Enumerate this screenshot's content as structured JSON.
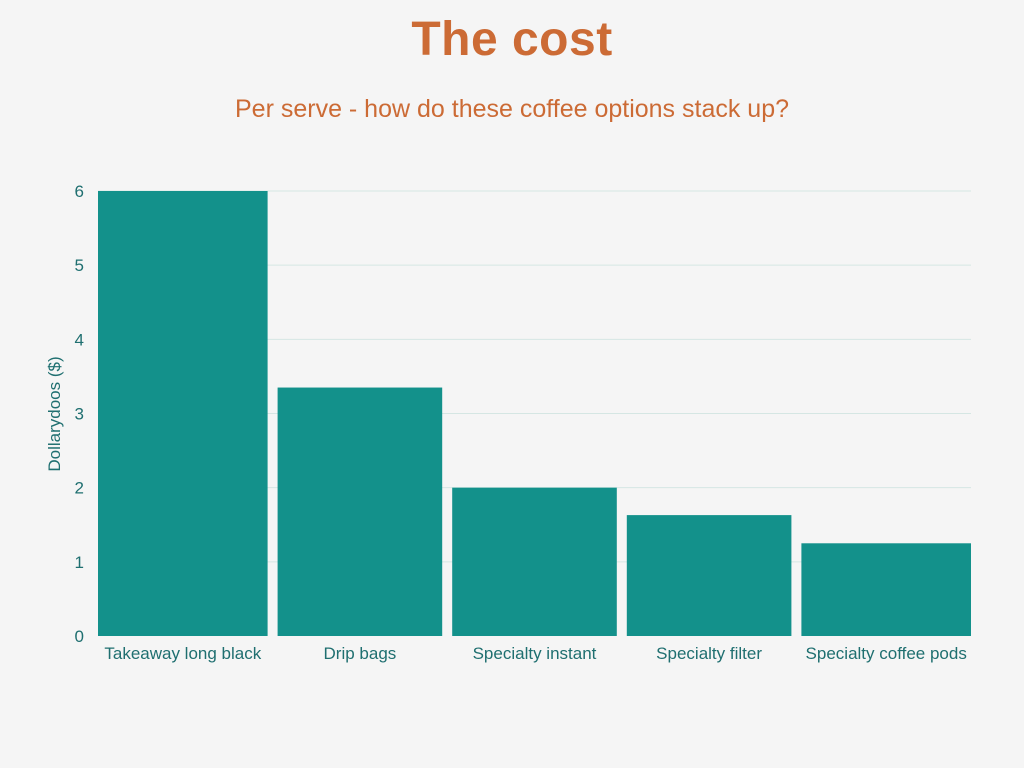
{
  "chart_data": {
    "type": "bar",
    "title": "The cost",
    "subtitle": "Per serve - how do these coffee options stack up?",
    "xlabel": "",
    "ylabel": "Dollarydoos ($)",
    "categories": [
      "Takeaway long black",
      "Drip bags",
      "Specialty instant",
      "Specialty filter",
      "Specialty coffee pods"
    ],
    "values": [
      6.0,
      3.35,
      2.0,
      1.63,
      1.25
    ],
    "ylim": [
      0,
      6
    ],
    "yticks": [
      0,
      1,
      2,
      3,
      4,
      5,
      6
    ],
    "grid": true,
    "legend": "none",
    "colors": {
      "bar": "#13918b",
      "title": "#cc6b35",
      "text": "#1f6f70",
      "grid": "#d5e6e3"
    }
  }
}
